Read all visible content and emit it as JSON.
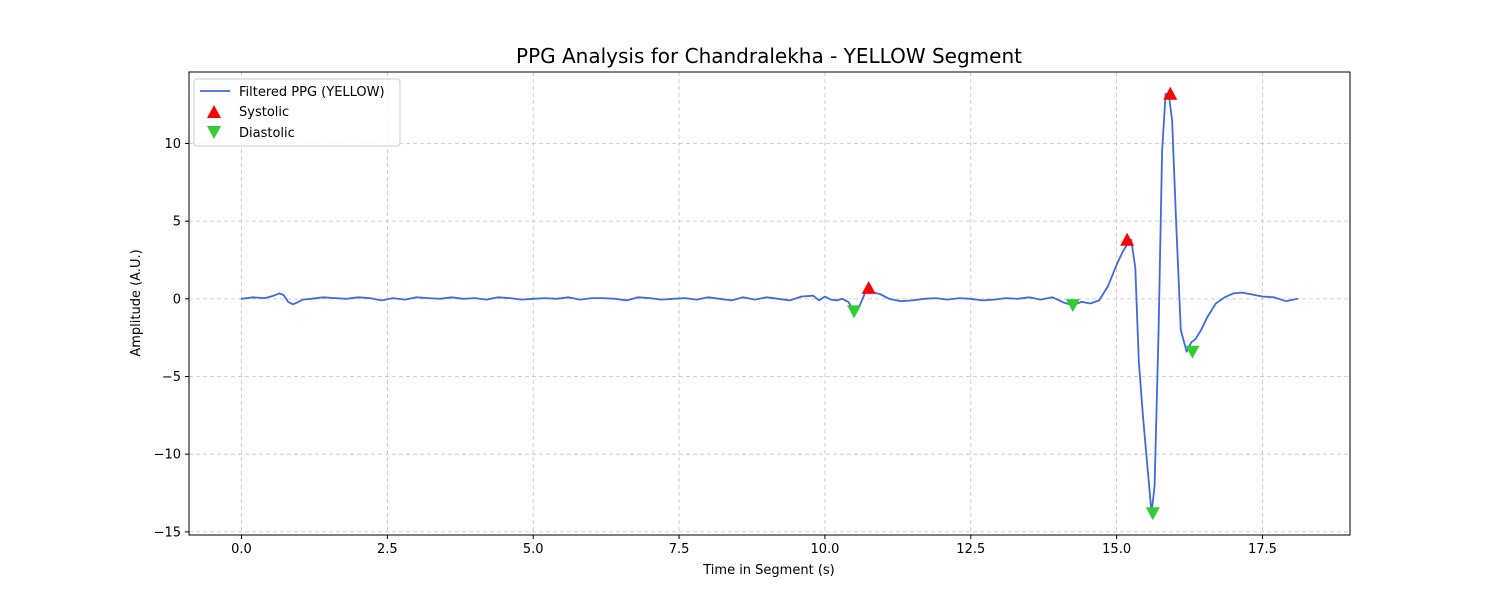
{
  "chart_data": {
    "type": "line",
    "title": "PPG Analysis for Chandralekha - YELLOW Segment",
    "xlabel": "Time in Segment (s)",
    "ylabel": "Amplitude (A.U.)",
    "xlim": [
      -0.9,
      19.0
    ],
    "ylim": [
      -15.2,
      14.6
    ],
    "xticks": [
      0.0,
      2.5,
      5.0,
      7.5,
      10.0,
      12.5,
      15.0,
      17.5
    ],
    "xtick_labels": [
      "0.0",
      "2.5",
      "5.0",
      "7.5",
      "10.0",
      "12.5",
      "15.0",
      "17.5"
    ],
    "yticks": [
      -15,
      -10,
      -5,
      0,
      5,
      10
    ],
    "ytick_labels": [
      "−15",
      "−10",
      "−5",
      "0",
      "5",
      "10"
    ],
    "grid": true,
    "legend_position": "top-left",
    "series": [
      {
        "name": "Filtered PPG (YELLOW)",
        "kind": "line",
        "color": "#4169e1",
        "x": [
          0.0,
          0.2,
          0.4,
          0.55,
          0.65,
          0.72,
          0.8,
          0.88,
          0.95,
          1.05,
          1.2,
          1.4,
          1.6,
          1.8,
          2.0,
          2.2,
          2.4,
          2.6,
          2.8,
          3.0,
          3.2,
          3.4,
          3.6,
          3.8,
          4.0,
          4.2,
          4.4,
          4.6,
          4.8,
          5.0,
          5.2,
          5.4,
          5.6,
          5.8,
          6.0,
          6.2,
          6.4,
          6.6,
          6.8,
          7.0,
          7.2,
          7.4,
          7.6,
          7.8,
          8.0,
          8.2,
          8.4,
          8.6,
          8.8,
          9.0,
          9.2,
          9.4,
          9.6,
          9.8,
          9.9,
          10.0,
          10.1,
          10.2,
          10.3,
          10.4,
          10.5,
          10.6,
          10.7,
          10.75,
          10.85,
          10.95,
          11.1,
          11.3,
          11.5,
          11.7,
          11.9,
          12.1,
          12.3,
          12.5,
          12.7,
          12.9,
          13.1,
          13.3,
          13.5,
          13.7,
          13.9,
          14.1,
          14.25,
          14.4,
          14.55,
          14.7,
          14.85,
          15.0,
          15.1,
          15.18,
          15.25,
          15.32,
          15.38,
          15.45,
          15.52,
          15.6,
          15.65,
          15.72,
          15.78,
          15.84,
          15.9,
          15.95,
          16.02,
          16.1,
          16.2,
          16.28,
          16.35,
          16.45,
          16.55,
          16.7,
          16.85,
          17.0,
          17.15,
          17.3,
          17.5,
          17.7,
          17.9,
          18.1
        ],
        "y": [
          0.0,
          0.1,
          0.05,
          0.2,
          0.35,
          0.25,
          -0.2,
          -0.35,
          -0.25,
          -0.05,
          0.0,
          0.1,
          0.05,
          0.0,
          0.1,
          0.05,
          -0.1,
          0.05,
          -0.05,
          0.1,
          0.05,
          0.0,
          0.1,
          0.0,
          0.05,
          -0.05,
          0.1,
          0.05,
          -0.05,
          0.0,
          0.05,
          0.0,
          0.1,
          -0.05,
          0.05,
          0.05,
          0.0,
          -0.1,
          0.1,
          0.05,
          -0.05,
          0.0,
          0.05,
          -0.05,
          0.1,
          0.0,
          -0.1,
          0.1,
          -0.05,
          0.1,
          0.0,
          -0.1,
          0.15,
          0.2,
          -0.1,
          0.15,
          -0.05,
          -0.1,
          0.0,
          -0.2,
          -0.8,
          -0.4,
          0.5,
          0.7,
          0.4,
          0.3,
          0.0,
          -0.15,
          -0.1,
          0.0,
          0.05,
          -0.05,
          0.05,
          0.0,
          -0.1,
          -0.05,
          0.05,
          0.0,
          0.1,
          -0.05,
          0.1,
          -0.25,
          -0.4,
          -0.2,
          -0.3,
          -0.1,
          0.8,
          2.2,
          3.0,
          3.5,
          3.8,
          2.0,
          -4.0,
          -7.5,
          -10.5,
          -13.8,
          -12.0,
          -2.0,
          9.5,
          13.2,
          13.0,
          11.5,
          5.0,
          -2.0,
          -3.4,
          -2.8,
          -2.6,
          -2.0,
          -1.2,
          -0.3,
          0.1,
          0.35,
          0.4,
          0.3,
          0.15,
          0.1,
          -0.15,
          0.0
        ]
      },
      {
        "name": "Systolic",
        "kind": "scatter",
        "marker": "triangle-up",
        "color": "#ff0000",
        "x": [
          10.75,
          15.18,
          15.92
        ],
        "y": [
          0.7,
          3.8,
          13.2
        ]
      },
      {
        "name": "Diastolic",
        "kind": "scatter",
        "marker": "triangle-down",
        "color": "#32cd32",
        "x": [
          10.5,
          14.25,
          15.62,
          16.3
        ],
        "y": [
          -0.8,
          -0.4,
          -13.8,
          -3.4
        ]
      }
    ]
  }
}
